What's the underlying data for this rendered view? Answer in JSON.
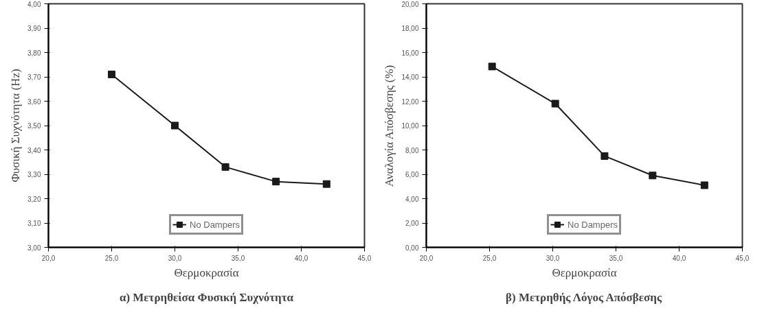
{
  "chart_data": [
    {
      "type": "line",
      "xlabel": "Θερμοκρασία",
      "ylabel": "Φυσική Συχνότητα (Hz)",
      "x": [
        25,
        30,
        34,
        38,
        42
      ],
      "series": [
        {
          "name": "No Dampers",
          "color": "#1a1a1a",
          "values": [
            3.71,
            3.5,
            3.33,
            3.27,
            3.26
          ]
        }
      ],
      "xlim": [
        20,
        45
      ],
      "xticks": [
        {
          "value": 20,
          "label": "20,0"
        },
        {
          "value": 25,
          "label": "25,0"
        },
        {
          "value": 30,
          "label": "30,0"
        },
        {
          "value": 35,
          "label": "35,0"
        },
        {
          "value": 40,
          "label": "40,0"
        },
        {
          "value": 45,
          "label": "45,0"
        }
      ],
      "ylim": [
        3.0,
        4.0
      ],
      "yticks": [
        {
          "value": 3.0,
          "label": "3,00"
        },
        {
          "value": 3.1,
          "label": "3,10"
        },
        {
          "value": 3.2,
          "label": "3,20"
        },
        {
          "value": 3.3,
          "label": "3,30"
        },
        {
          "value": 3.4,
          "label": "3,40"
        },
        {
          "value": 3.5,
          "label": "3,50"
        },
        {
          "value": 3.6,
          "label": "3,60"
        },
        {
          "value": 3.7,
          "label": "3,70"
        },
        {
          "value": 3.8,
          "label": "3,80"
        },
        {
          "value": 3.9,
          "label": "3,90"
        },
        {
          "value": 4.0,
          "label": "4,00"
        }
      ],
      "marker": "square",
      "grid": false,
      "legend": "bottom",
      "annotations": [
        "α) Μετρηθείσα Φυσική Συχνότητα"
      ]
    },
    {
      "type": "line",
      "xlabel": "Θερμοκρασία",
      "ylabel": "Αναλογία Απόσβεσης (%)",
      "x": [
        25.2,
        30.2,
        34.1,
        37.9,
        42
      ],
      "series": [
        {
          "name": "No Dampers",
          "color": "#1a1a1a",
          "values": [
            14.85,
            11.8,
            7.5,
            5.9,
            5.1
          ]
        }
      ],
      "xlim": [
        20,
        45
      ],
      "xticks": [
        {
          "value": 20,
          "label": "20,0"
        },
        {
          "value": 25,
          "label": "25,0"
        },
        {
          "value": 30,
          "label": "30,0"
        },
        {
          "value": 35,
          "label": "35,0"
        },
        {
          "value": 40,
          "label": "40,0"
        },
        {
          "value": 45,
          "label": "45,0"
        }
      ],
      "ylim": [
        0,
        20
      ],
      "yticks": [
        {
          "value": 0,
          "label": "0,00"
        },
        {
          "value": 2,
          "label": "2,00"
        },
        {
          "value": 4,
          "label": "4,00"
        },
        {
          "value": 6,
          "label": "6,00"
        },
        {
          "value": 8,
          "label": "8,00"
        },
        {
          "value": 10,
          "label": "10,00"
        },
        {
          "value": 12,
          "label": "12,00"
        },
        {
          "value": 14,
          "label": "14,00"
        },
        {
          "value": 16,
          "label": "16,00"
        },
        {
          "value": 18,
          "label": "18,00"
        },
        {
          "value": 20,
          "label": "20,00"
        }
      ],
      "marker": "square",
      "grid": false,
      "legend": "bottom",
      "annotations": [
        "β) Μετρηθής Λόγος Απόσβεσης"
      ]
    }
  ]
}
